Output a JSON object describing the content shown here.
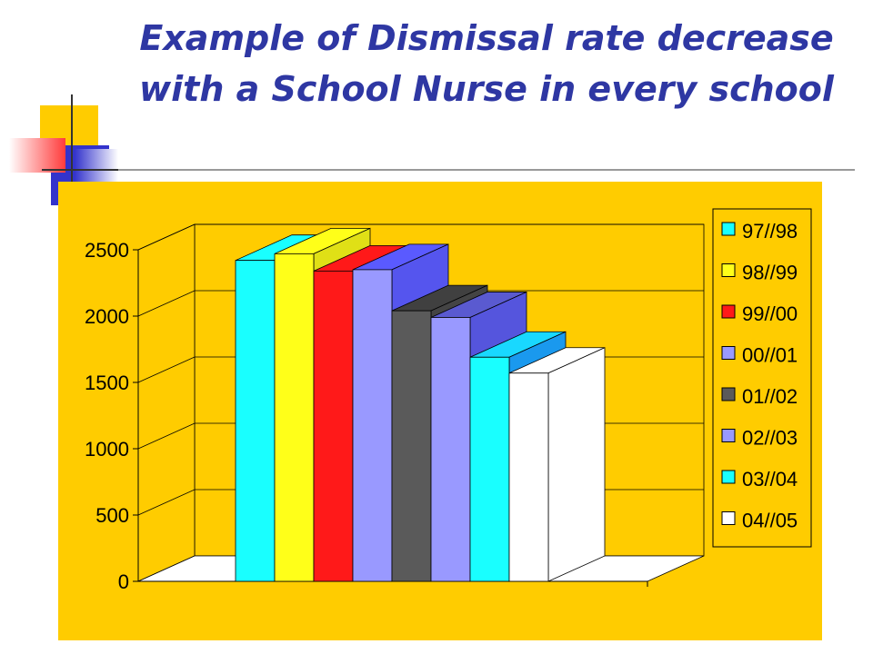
{
  "title": "Example of Dismissal rate decrease with a School Nurse in every school",
  "chart_data": {
    "type": "bar",
    "title": "Example of Dismissal rate decrease with a School Nurse in every school",
    "categories": [
      "97//98",
      "98//99",
      "99//00",
      "00//01",
      "01//02",
      "02//03",
      "03//04",
      "04//05"
    ],
    "values": [
      2420,
      2470,
      2340,
      2350,
      2040,
      1990,
      1690,
      1570
    ],
    "ylim": [
      0,
      2500
    ],
    "yticks": [
      0,
      500,
      1000,
      1500,
      2000,
      2500
    ],
    "grid": true,
    "legend_position": "right",
    "colors": {
      "background": "#ffcc00",
      "series": [
        "#19ffff",
        "#ffff19",
        "#ff1919",
        "#9999ff",
        "#5a5a5a",
        "#9999ff",
        "#19ffff",
        "#ffffff"
      ],
      "side": [
        "#16dfe0",
        "#e0e016",
        "#cc1414",
        "#5555ee",
        "#444444",
        "#5555dd",
        "#1a99ee",
        "#ffffff"
      ],
      "top": [
        "#19ffff",
        "#ffff19",
        "#ff1919",
        "#5a5aff",
        "#404040",
        "#5a5ad0",
        "#19d8ff",
        "#ffffff"
      ]
    }
  }
}
